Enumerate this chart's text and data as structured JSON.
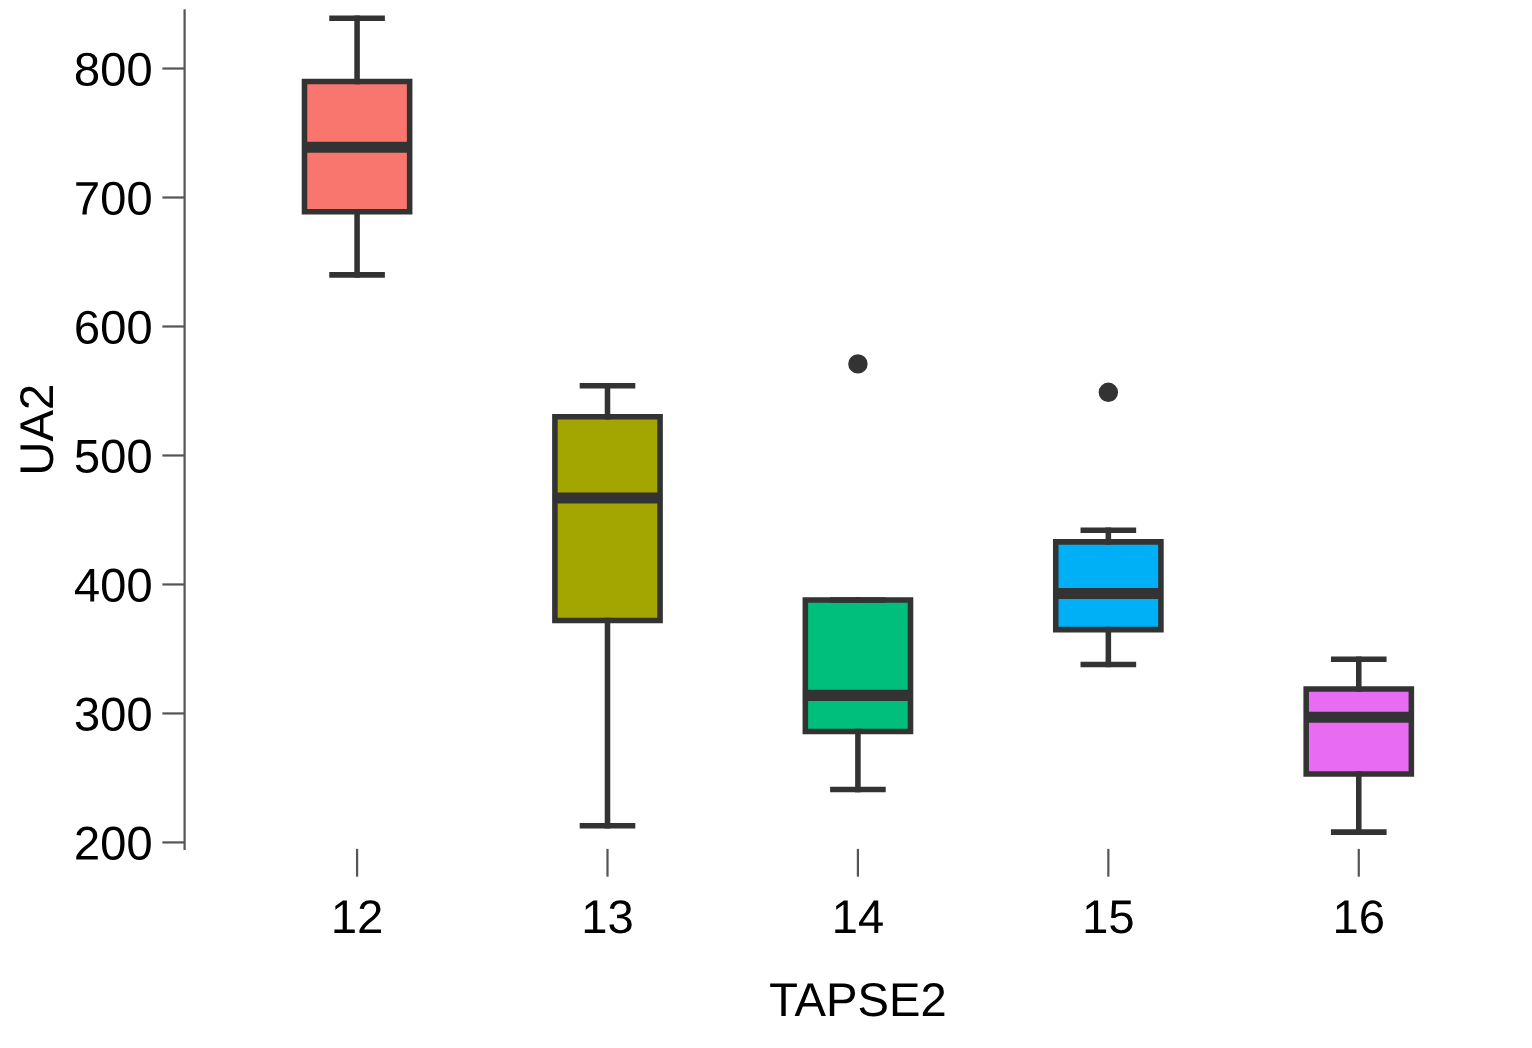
{
  "chart_data": {
    "type": "box",
    "xlabel": "TAPSE2",
    "ylabel": "UA2",
    "categories": [
      "12",
      "13",
      "14",
      "15",
      "16"
    ],
    "colors": [
      "#f8766d",
      "#a3a500",
      "#00bf7d",
      "#00b0f6",
      "#e76bf3"
    ],
    "boxes": [
      {
        "low": 640,
        "q1": 689,
        "median": 739,
        "q3": 790,
        "high": 839
      },
      {
        "low": 213,
        "q1": 372,
        "median": 467,
        "q3": 530,
        "high": 554
      },
      {
        "low": 241,
        "q1": 286,
        "median": 314,
        "q3": 388,
        "high": 388,
        "outliers": [
          571
        ]
      },
      {
        "low": 338,
        "q1": 365,
        "median": 393,
        "q3": 433,
        "high": 442,
        "outliers": [
          549
        ]
      },
      {
        "low": 208,
        "q1": 253,
        "median": 297,
        "q3": 319,
        "high": 342
      }
    ],
    "ylim": [
      195,
      845
    ],
    "yticks": [
      200,
      300,
      400,
      500,
      600,
      700,
      800
    ],
    "grid": false
  }
}
